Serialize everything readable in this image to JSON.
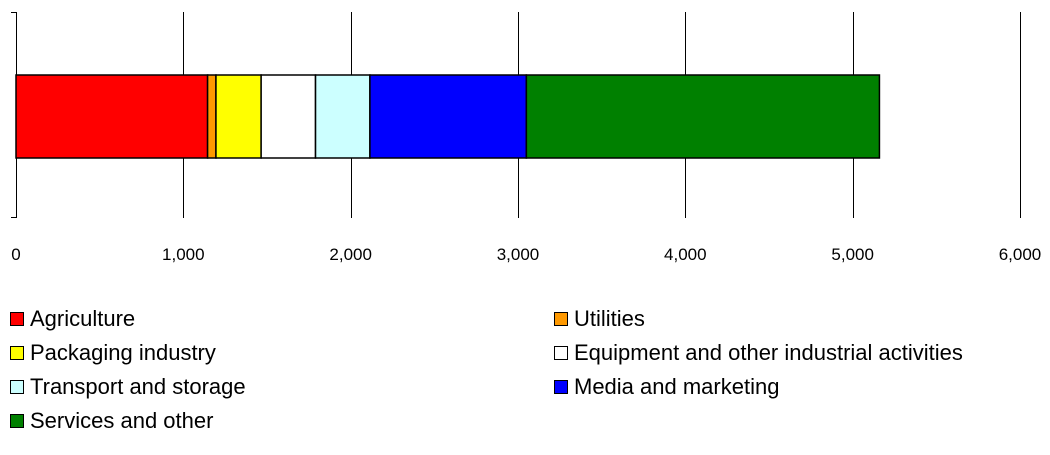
{
  "chart_data": {
    "type": "bar",
    "orientation": "horizontal",
    "stacked": true,
    "title": "",
    "xlabel": "",
    "ylabel": "",
    "xlim": [
      0,
      6000
    ],
    "x_ticks": [
      0,
      1000,
      2000,
      3000,
      4000,
      5000,
      6000
    ],
    "x_tick_labels": [
      "0",
      "1,000",
      "2,000",
      "3,000",
      "4,000",
      "5,000",
      "6,000"
    ],
    "grid": "vertical gridlines",
    "legend_position": "bottom",
    "series": [
      {
        "name": "Agriculture",
        "value": 1145,
        "color": "#ff0000"
      },
      {
        "name": "Utilities",
        "value": 50,
        "color": "#ff9900"
      },
      {
        "name": "Packaging industry",
        "value": 270,
        "color": "#ffff00"
      },
      {
        "name": "Equipment and other industrial activities",
        "value": 325,
        "color": "#ffffff"
      },
      {
        "name": "Transport and storage",
        "value": 325,
        "color": "#ccffff"
      },
      {
        "name": "Media and marketing",
        "value": 935,
        "color": "#0000ff"
      },
      {
        "name": "Services and other",
        "value": 2110,
        "color": "#008000"
      }
    ]
  }
}
